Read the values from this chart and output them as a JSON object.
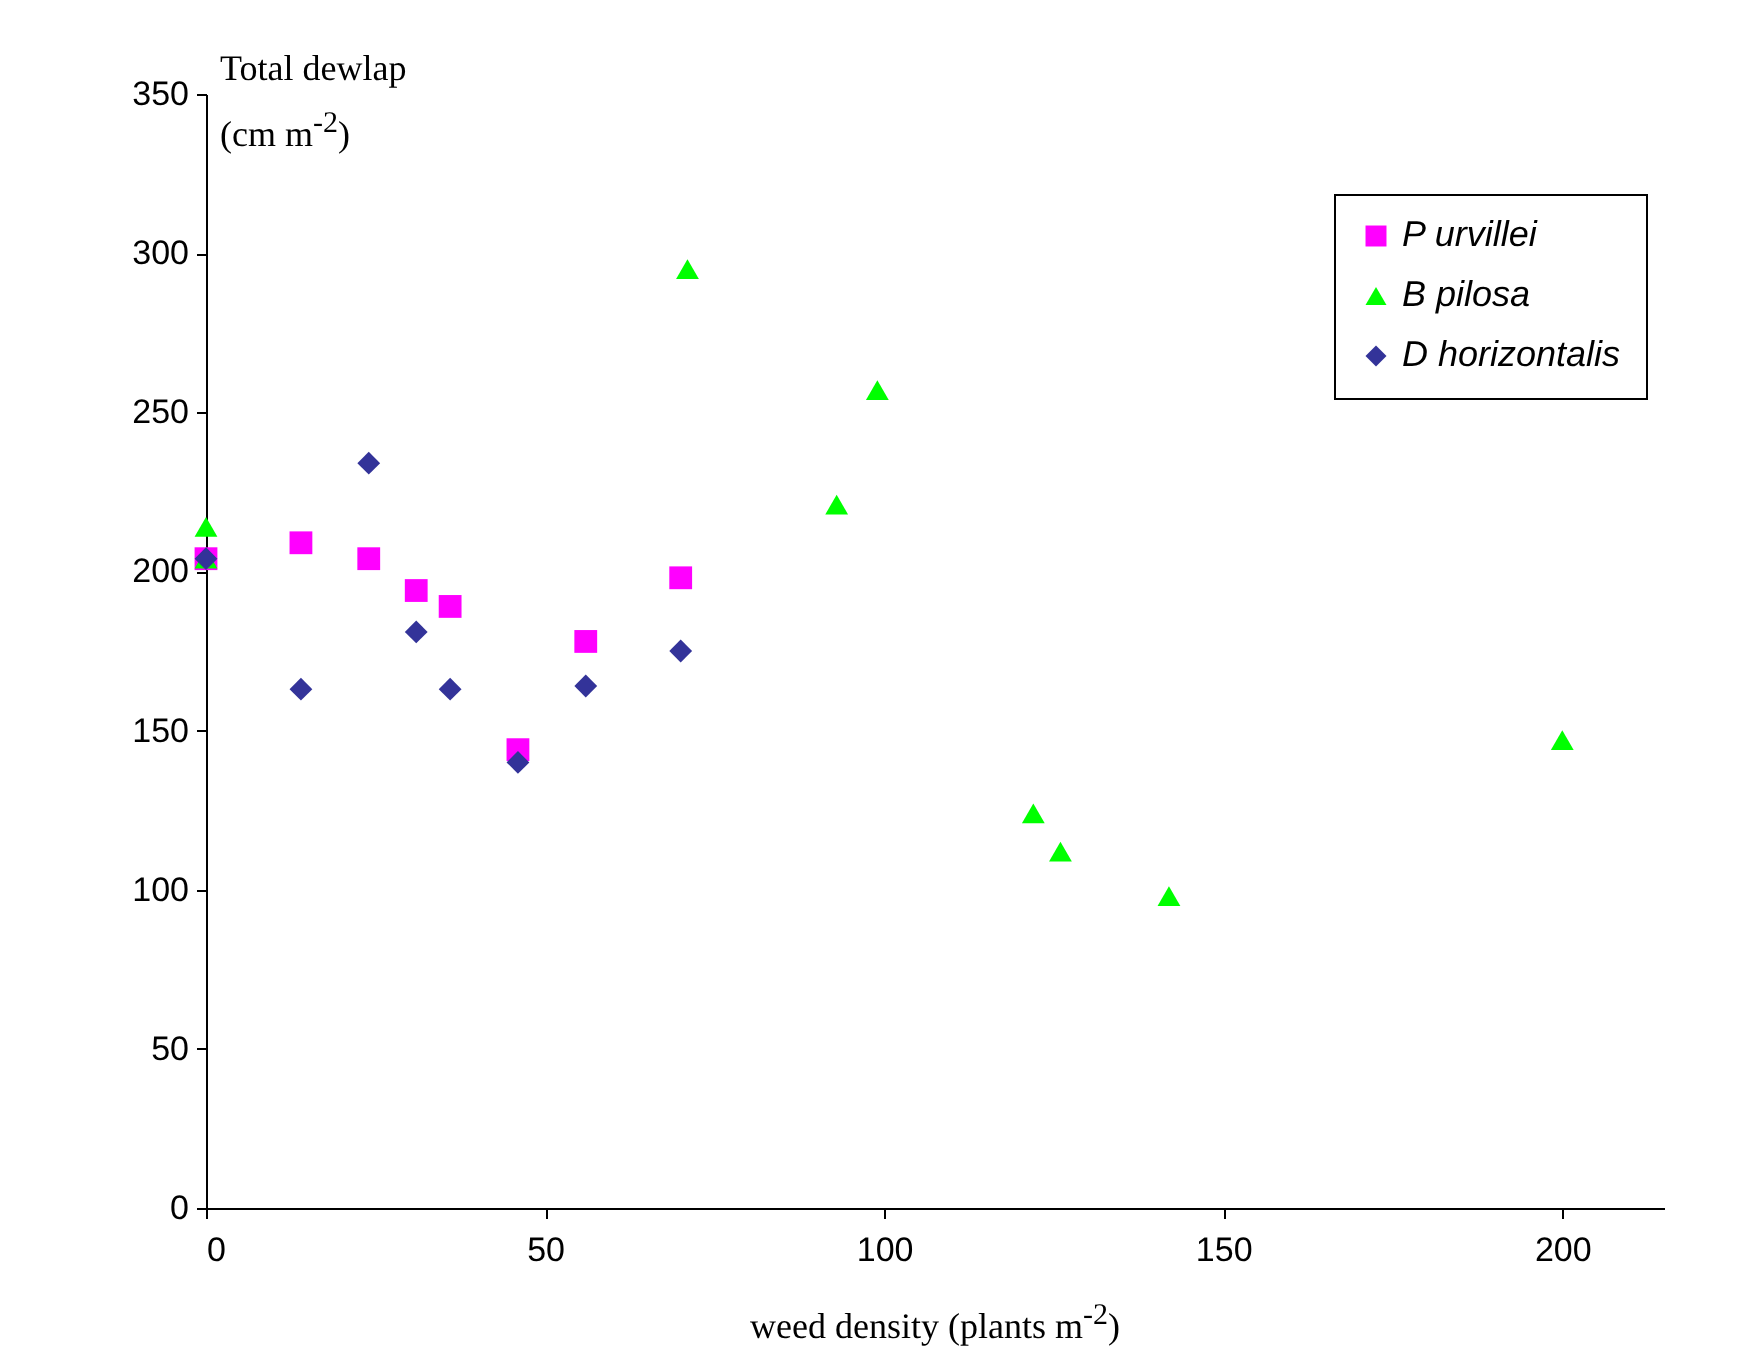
{
  "chart_data": {
    "type": "scatter",
    "xlabel": "weed density (plants m$^{-2}$)",
    "ylabel": "Total dewlap (cm m$^{-2}$)",
    "xlim": [
      0,
      215
    ],
    "xticks": [
      0,
      50,
      100,
      150,
      200
    ],
    "ylim": [
      0,
      350
    ],
    "yticks": [
      0,
      50,
      100,
      150,
      200,
      250,
      300,
      350
    ],
    "grid": false,
    "legend": "top right",
    "series": [
      {
        "name": "P urvillei",
        "color": "#ff00ff",
        "marker": "square",
        "x": [
          0,
          14,
          24,
          31,
          36,
          46,
          56,
          70
        ],
        "values": [
          204,
          209,
          204,
          194,
          189,
          144,
          178,
          198
        ]
      },
      {
        "name": "B pilosa",
        "color": "#00ff00",
        "marker": "triangle",
        "x": [
          0,
          0,
          71,
          93,
          99,
          122,
          126,
          142,
          200
        ],
        "values": [
          214,
          204,
          295,
          221,
          257,
          124,
          112,
          98,
          147
        ]
      },
      {
        "name": "D horizontalis",
        "color": "#333399",
        "marker": "diamond",
        "x": [
          0,
          14,
          24,
          31,
          36,
          46,
          56,
          70
        ],
        "values": [
          204,
          163,
          234,
          181,
          163,
          140,
          164,
          175
        ]
      }
    ]
  }
}
